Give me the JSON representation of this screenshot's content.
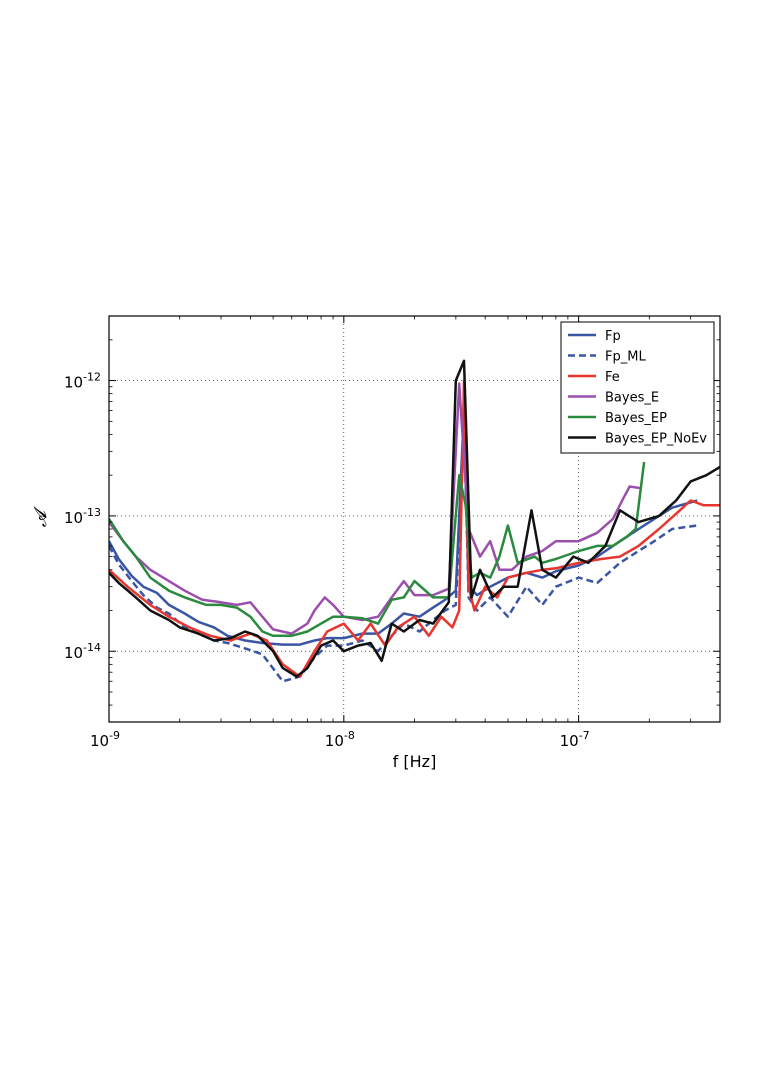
{
  "chart_data": {
    "type": "line",
    "xlabel": "f [Hz]",
    "ylabel": "𝓐",
    "xscale": "log",
    "yscale": "log",
    "xlim": [
      1e-09,
      4e-07
    ],
    "ylim": [
      3e-15,
      3e-12
    ],
    "grid": true,
    "legend_position": "top-right",
    "x_ticks": [
      {
        "base": "10",
        "exp": "-9",
        "value": 1e-09
      },
      {
        "base": "10",
        "exp": "-8",
        "value": 1e-08
      },
      {
        "base": "10",
        "exp": "-7",
        "value": 1e-07
      }
    ],
    "y_ticks": [
      {
        "base": "10",
        "exp": "-14",
        "value": 1e-14
      },
      {
        "base": "10",
        "exp": "-13",
        "value": 1e-13
      },
      {
        "base": "10",
        "exp": "-12",
        "value": 1e-12
      }
    ],
    "series": [
      {
        "name": "Fp",
        "color": "#3a55a4",
        "style": "solid",
        "points": [
          [
            1e-09,
            6.5e-14
          ],
          [
            1.1e-09,
            4.8e-14
          ],
          [
            1.25e-09,
            3.6e-14
          ],
          [
            1.4e-09,
            3e-14
          ],
          [
            1.6e-09,
            2.7e-14
          ],
          [
            1.8e-09,
            2.2e-14
          ],
          [
            2.1e-09,
            1.9e-14
          ],
          [
            2.4e-09,
            1.65e-14
          ],
          [
            2.8e-09,
            1.5e-14
          ],
          [
            3.2e-09,
            1.3e-14
          ],
          [
            3.8e-09,
            1.2e-14
          ],
          [
            4.5e-09,
            1.15e-14
          ],
          [
            5.5e-09,
            1.12e-14
          ],
          [
            6.5e-09,
            1.12e-14
          ],
          [
            7.5e-09,
            1.2e-14
          ],
          [
            8.5e-09,
            1.25e-14
          ],
          [
            1e-08,
            1.25e-14
          ],
          [
            1.2e-08,
            1.35e-14
          ],
          [
            1.4e-08,
            1.35e-14
          ],
          [
            1.6e-08,
            1.6e-14
          ],
          [
            1.8e-08,
            1.9e-14
          ],
          [
            2.1e-08,
            1.8e-14
          ],
          [
            2.4e-08,
            2.1e-14
          ],
          [
            2.7e-08,
            2.4e-14
          ],
          [
            3e-08,
            2.8e-14
          ],
          [
            3.25e-08,
            6e-13
          ],
          [
            3.4e-08,
            3e-14
          ],
          [
            3.7e-08,
            2.6e-14
          ],
          [
            4.2e-08,
            3e-14
          ],
          [
            5e-08,
            3.5e-14
          ],
          [
            6e-08,
            3.8e-14
          ],
          [
            7e-08,
            3.5e-14
          ],
          [
            8e-08,
            3.9e-14
          ],
          [
            1e-07,
            4.3e-14
          ],
          [
            1.2e-07,
            5e-14
          ],
          [
            1.5e-07,
            6.5e-14
          ],
          [
            1.8e-07,
            8e-14
          ],
          [
            2.1e-07,
            9.5e-14
          ],
          [
            2.5e-07,
            1.15e-13
          ],
          [
            3.2e-07,
            1.3e-13
          ]
        ]
      },
      {
        "name": "Fp_ML",
        "color": "#3a55a4",
        "style": "dashed",
        "points": [
          [
            1e-09,
            6e-14
          ],
          [
            1.1e-09,
            4.4e-14
          ],
          [
            1.25e-09,
            3.3e-14
          ],
          [
            1.4e-09,
            2.6e-14
          ],
          [
            1.6e-09,
            2.1e-14
          ],
          [
            1.8e-09,
            1.9e-14
          ],
          [
            2.1e-09,
            1.5e-14
          ],
          [
            2.4e-09,
            1.35e-14
          ],
          [
            2.8e-09,
            1.2e-14
          ],
          [
            3.2e-09,
            1.15e-14
          ],
          [
            3.8e-09,
            1.05e-14
          ],
          [
            4.5e-09,
            9.5e-15
          ],
          [
            5.5e-09,
            6e-15
          ],
          [
            6.5e-09,
            6.5e-15
          ],
          [
            7.5e-09,
            9e-15
          ],
          [
            8.5e-09,
            1.1e-14
          ],
          [
            1e-08,
            1.1e-14
          ],
          [
            1.2e-08,
            1.2e-14
          ],
          [
            1.4e-08,
            1e-14
          ],
          [
            1.6e-08,
            1.3e-14
          ],
          [
            1.8e-08,
            1.6e-14
          ],
          [
            2.1e-08,
            1.4e-14
          ],
          [
            2.4e-08,
            1.7e-14
          ],
          [
            2.7e-08,
            2e-14
          ],
          [
            3e-08,
            2.2e-14
          ],
          [
            3.25e-08,
            5e-13
          ],
          [
            3.4e-08,
            2.5e-14
          ],
          [
            3.7e-08,
            2e-14
          ],
          [
            4.2e-08,
            2.5e-14
          ],
          [
            5e-08,
            1.8e-14
          ],
          [
            6e-08,
            3e-14
          ],
          [
            7e-08,
            2.2e-14
          ],
          [
            8e-08,
            3e-14
          ],
          [
            1e-07,
            3.5e-14
          ],
          [
            1.2e-07,
            3.2e-14
          ],
          [
            1.5e-07,
            4.5e-14
          ],
          [
            1.8e-07,
            5.5e-14
          ],
          [
            2.1e-07,
            6.5e-14
          ],
          [
            2.5e-07,
            8e-14
          ],
          [
            3.2e-07,
            8.5e-14
          ]
        ]
      },
      {
        "name": "Fe",
        "color": "#e8362f",
        "style": "solid",
        "points": [
          [
            1e-09,
            4e-14
          ],
          [
            1.2e-09,
            3e-14
          ],
          [
            1.5e-09,
            2.2e-14
          ],
          [
            1.8e-09,
            1.8e-14
          ],
          [
            2.2e-09,
            1.5e-14
          ],
          [
            2.7e-09,
            1.3e-14
          ],
          [
            3.3e-09,
            1.2e-14
          ],
          [
            4e-09,
            1.35e-14
          ],
          [
            4.7e-09,
            1.2e-14
          ],
          [
            5.5e-09,
            8e-15
          ],
          [
            6.5e-09,
            6.5e-15
          ],
          [
            7.5e-09,
            1e-14
          ],
          [
            8.5e-09,
            1.4e-14
          ],
          [
            1e-08,
            1.6e-14
          ],
          [
            1.15e-08,
            1.2e-14
          ],
          [
            1.3e-08,
            1.6e-14
          ],
          [
            1.5e-08,
            1.1e-14
          ],
          [
            1.7e-08,
            1.5e-14
          ],
          [
            2e-08,
            1.8e-14
          ],
          [
            2.3e-08,
            1.3e-14
          ],
          [
            2.6e-08,
            1.8e-14
          ],
          [
            2.9e-08,
            1.5e-14
          ],
          [
            3.1e-08,
            2e-14
          ],
          [
            3.25e-08,
            1e-12
          ],
          [
            3.4e-08,
            3e-14
          ],
          [
            3.6e-08,
            2e-14
          ],
          [
            4e-08,
            3e-14
          ],
          [
            4.5e-08,
            2.5e-14
          ],
          [
            5e-08,
            3.5e-14
          ],
          [
            6e-08,
            3.8e-14
          ],
          [
            7e-08,
            4e-14
          ],
          [
            8e-08,
            4.1e-14
          ],
          [
            1e-07,
            4.5e-14
          ],
          [
            1.25e-07,
            4.8e-14
          ],
          [
            1.5e-07,
            5e-14
          ],
          [
            1.8e-07,
            6e-14
          ],
          [
            2.2e-07,
            8e-14
          ],
          [
            2.7e-07,
            1.1e-13
          ],
          [
            3e-07,
            1.3e-13
          ],
          [
            3.4e-07,
            1.2e-13
          ],
          [
            4e-07,
            1.2e-13
          ]
        ]
      },
      {
        "name": "Bayes_E",
        "color": "#9b4fad",
        "style": "solid",
        "points": [
          [
            1e-09,
            9e-14
          ],
          [
            1.15e-09,
            6.5e-14
          ],
          [
            1.3e-09,
            5e-14
          ],
          [
            1.5e-09,
            4e-14
          ],
          [
            1.8e-09,
            3.3e-14
          ],
          [
            2.1e-09,
            2.8e-14
          ],
          [
            2.5e-09,
            2.4e-14
          ],
          [
            3e-09,
            2.3e-14
          ],
          [
            3.5e-09,
            2.2e-14
          ],
          [
            4e-09,
            2.3e-14
          ],
          [
            4.5e-09,
            1.8e-14
          ],
          [
            5e-09,
            1.45e-14
          ],
          [
            6e-09,
            1.35e-14
          ],
          [
            7e-09,
            1.6e-14
          ],
          [
            7.5e-09,
            2e-14
          ],
          [
            8.3e-09,
            2.5e-14
          ],
          [
            9e-09,
            2.2e-14
          ],
          [
            1e-08,
            1.8e-14
          ],
          [
            1.2e-08,
            1.7e-14
          ],
          [
            1.4e-08,
            1.8e-14
          ],
          [
            1.6e-08,
            2.5e-14
          ],
          [
            1.8e-08,
            3.3e-14
          ],
          [
            2e-08,
            2.6e-14
          ],
          [
            2.4e-08,
            2.6e-14
          ],
          [
            2.8e-08,
            2.9e-14
          ],
          [
            3.1e-08,
            9.5e-13
          ],
          [
            3.4e-08,
            8e-14
          ],
          [
            3.8e-08,
            5e-14
          ],
          [
            4.2e-08,
            6.5e-14
          ],
          [
            4.6e-08,
            4e-14
          ],
          [
            5.2e-08,
            4e-14
          ],
          [
            6e-08,
            5e-14
          ],
          [
            7e-08,
            5.5e-14
          ],
          [
            8e-08,
            6.5e-14
          ],
          [
            1e-07,
            6.5e-14
          ],
          [
            1.2e-07,
            7.5e-14
          ],
          [
            1.4e-07,
            9.5e-14
          ],
          [
            1.55e-07,
            1.35e-13
          ],
          [
            1.65e-07,
            1.65e-13
          ],
          [
            1.85e-07,
            1.6e-13
          ]
        ]
      },
      {
        "name": "Bayes_EP",
        "color": "#2a8a3e",
        "style": "solid",
        "points": [
          [
            1e-09,
            9.5e-14
          ],
          [
            1.15e-09,
            6.5e-14
          ],
          [
            1.3e-09,
            5e-14
          ],
          [
            1.5e-09,
            3.5e-14
          ],
          [
            1.8e-09,
            2.8e-14
          ],
          [
            2.1e-09,
            2.5e-14
          ],
          [
            2.6e-09,
            2.2e-14
          ],
          [
            3e-09,
            2.2e-14
          ],
          [
            3.5e-09,
            2.1e-14
          ],
          [
            4e-09,
            1.8e-14
          ],
          [
            4.5e-09,
            1.4e-14
          ],
          [
            5e-09,
            1.3e-14
          ],
          [
            6e-09,
            1.3e-14
          ],
          [
            7e-09,
            1.4e-14
          ],
          [
            8e-09,
            1.6e-14
          ],
          [
            9e-09,
            1.8e-14
          ],
          [
            1e-08,
            1.8e-14
          ],
          [
            1.2e-08,
            1.75e-14
          ],
          [
            1.4e-08,
            1.6e-14
          ],
          [
            1.6e-08,
            2.4e-14
          ],
          [
            1.8e-08,
            2.5e-14
          ],
          [
            2e-08,
            3.3e-14
          ],
          [
            2.4e-08,
            2.5e-14
          ],
          [
            2.8e-08,
            2.5e-14
          ],
          [
            3.1e-08,
            2e-13
          ],
          [
            3.3e-08,
            1.2e-13
          ],
          [
            3.5e-08,
            3.5e-14
          ],
          [
            3.8e-08,
            3.8e-14
          ],
          [
            4.2e-08,
            3.5e-14
          ],
          [
            4.6e-08,
            5e-14
          ],
          [
            5e-08,
            8.5e-14
          ],
          [
            5.5e-08,
            4.5e-14
          ],
          [
            6.5e-08,
            5e-14
          ],
          [
            7e-08,
            4.5e-14
          ],
          [
            8e-08,
            4.8e-14
          ],
          [
            1e-07,
            5.5e-14
          ],
          [
            1.2e-07,
            6e-14
          ],
          [
            1.4e-07,
            6e-14
          ],
          [
            1.6e-07,
            7e-14
          ],
          [
            1.75e-07,
            8e-14
          ],
          [
            1.9e-07,
            2.5e-13
          ]
        ]
      },
      {
        "name": "Bayes_EP_NoEv",
        "color": "#111111",
        "style": "solid",
        "points": [
          [
            1e-09,
            3.8e-14
          ],
          [
            1.1e-09,
            3.2e-14
          ],
          [
            1.3e-09,
            2.5e-14
          ],
          [
            1.5e-09,
            2e-14
          ],
          [
            1.8e-09,
            1.7e-14
          ],
          [
            2e-09,
            1.5e-14
          ],
          [
            2.4e-09,
            1.35e-14
          ],
          [
            2.8e-09,
            1.2e-14
          ],
          [
            3.3e-09,
            1.25e-14
          ],
          [
            3.8e-09,
            1.4e-14
          ],
          [
            4.3e-09,
            1.3e-14
          ],
          [
            5e-09,
            1e-14
          ],
          [
            5.5e-09,
            7.5e-15
          ],
          [
            6.3e-09,
            6.5e-15
          ],
          [
            7e-09,
            7.5e-15
          ],
          [
            8e-09,
            1.1e-14
          ],
          [
            9e-09,
            1.2e-14
          ],
          [
            1e-08,
            1e-14
          ],
          [
            1.15e-08,
            1.1e-14
          ],
          [
            1.3e-08,
            1.15e-14
          ],
          [
            1.45e-08,
            8.5e-15
          ],
          [
            1.6e-08,
            1.6e-14
          ],
          [
            1.8e-08,
            1.4e-14
          ],
          [
            2.1e-08,
            1.7e-14
          ],
          [
            2.4e-08,
            1.6e-14
          ],
          [
            2.8e-08,
            2.3e-14
          ],
          [
            3e-08,
            1e-12
          ],
          [
            3.25e-08,
            1.4e-12
          ],
          [
            3.5e-08,
            2.5e-14
          ],
          [
            3.8e-08,
            4e-14
          ],
          [
            4.3e-08,
            2.5e-14
          ],
          [
            4.8e-08,
            3e-14
          ],
          [
            5.5e-08,
            3e-14
          ],
          [
            6.3e-08,
            1.1e-13
          ],
          [
            7e-08,
            4e-14
          ],
          [
            8e-08,
            3.5e-14
          ],
          [
            9.5e-08,
            5e-14
          ],
          [
            1.1e-07,
            4.5e-14
          ],
          [
            1.3e-07,
            6e-14
          ],
          [
            1.5e-07,
            1.1e-13
          ],
          [
            1.8e-07,
            9e-14
          ],
          [
            2.2e-07,
            1e-13
          ],
          [
            2.6e-07,
            1.3e-13
          ],
          [
            3e-07,
            1.8e-13
          ],
          [
            3.5e-07,
            2e-13
          ],
          [
            4e-07,
            2.3e-13
          ]
        ]
      }
    ]
  }
}
